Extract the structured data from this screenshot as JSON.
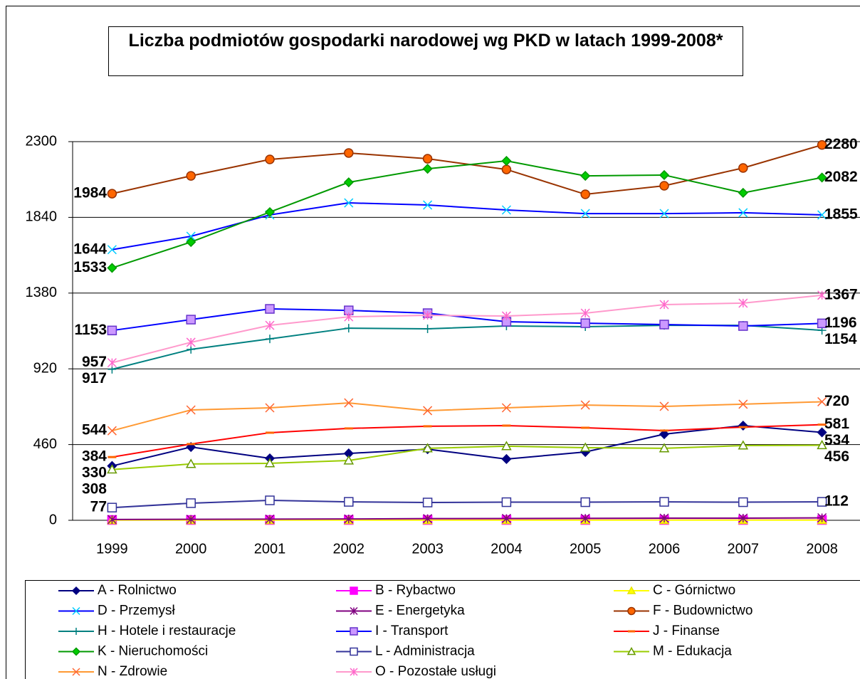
{
  "chart_data": {
    "type": "line",
    "title": "Liczba podmiotów gospodarki narodowej wg PKD w latach 1999-2008*",
    "categories": [
      "1999",
      "2000",
      "2001",
      "2002",
      "2003",
      "2004",
      "2005",
      "2006",
      "2007",
      "2008"
    ],
    "ylim": [
      0,
      2300
    ],
    "yticks": [
      0,
      460,
      920,
      1380,
      1840,
      2300
    ],
    "grid": true,
    "labeled_points": [
      0,
      9
    ],
    "series": [
      {
        "name": "A - Rolnictwo",
        "color": "#000080",
        "marker": "diamond",
        "marker_color": "#000080",
        "marker_fill": "#000080",
        "labeled": true,
        "values": [
          330,
          445,
          376,
          406,
          432,
          372,
          415,
          523,
          575,
          534
        ]
      },
      {
        "name": "B - Rybactwo",
        "color": "#ff00ff",
        "marker": "square",
        "marker_color": "#ff00ff",
        "marker_fill": "#ff00ff",
        "labeled": false,
        "values": [
          2,
          2,
          2,
          2,
          2,
          2,
          2,
          2,
          2,
          2
        ]
      },
      {
        "name": "C - Górnictwo",
        "color": "#ffff00",
        "marker": "triangle",
        "marker_color": "#e6e600",
        "marker_fill": "#ffff00",
        "labeled": false,
        "values": [
          1,
          1,
          1,
          1,
          1,
          1,
          1,
          1,
          1,
          1
        ]
      },
      {
        "name": "D - Przemysł",
        "color": "#0000ff",
        "marker": "x",
        "marker_color": "#00ccff",
        "marker_fill": "none",
        "labeled": true,
        "values": [
          1644,
          1725,
          1855,
          1928,
          1915,
          1885,
          1863,
          1863,
          1868,
          1855
        ]
      },
      {
        "name": "E - Energetyka",
        "color": "#800080",
        "marker": "star",
        "marker_color": "#800080",
        "marker_fill": "none",
        "labeled": false,
        "values": [
          5,
          6,
          7,
          8,
          10,
          11,
          12,
          13,
          13,
          15
        ]
      },
      {
        "name": "F - Budownictwo",
        "color": "#993300",
        "marker": "circle",
        "marker_color": "#993300",
        "marker_fill": "#ff6600",
        "labeled": true,
        "values": [
          1984,
          2092,
          2192,
          2231,
          2196,
          2131,
          1980,
          2032,
          2140,
          2280
        ]
      },
      {
        "name": "H - Hotele i restauracje",
        "color": "#008080",
        "marker": "plus",
        "marker_color": "#008080",
        "marker_fill": "none",
        "labeled": true,
        "values": [
          917,
          1038,
          1102,
          1167,
          1163,
          1180,
          1176,
          1184,
          1184,
          1154
        ]
      },
      {
        "name": "I - Transport",
        "color": "#0000ff",
        "marker": "square",
        "marker_color": "#6633cc",
        "marker_fill": "#cc99ff",
        "labeled": true,
        "values": [
          1153,
          1219,
          1284,
          1275,
          1258,
          1206,
          1197,
          1189,
          1180,
          1196
        ]
      },
      {
        "name": "J - Finanse",
        "color": "#ff0000",
        "marker": "dash",
        "marker_color": "#ff6600",
        "marker_fill": "none",
        "labeled": true,
        "values": [
          384,
          463,
          532,
          558,
          571,
          575,
          562,
          545,
          566,
          581
        ]
      },
      {
        "name": "K - Nieruchomości",
        "color": "#009900",
        "marker": "diamond",
        "marker_color": "#009900",
        "marker_fill": "#00cc00",
        "labeled": true,
        "values": [
          1533,
          1690,
          1872,
          2053,
          2135,
          2183,
          2092,
          2097,
          1989,
          2082
        ]
      },
      {
        "name": "L - Administracja",
        "color": "#333399",
        "marker": "square",
        "marker_color": "#333399",
        "marker_fill": "#ffffff",
        "labeled": true,
        "values": [
          77,
          104,
          121,
          112,
          108,
          110,
          110,
          112,
          110,
          112
        ]
      },
      {
        "name": "M - Edukacja",
        "color": "#99cc00",
        "marker": "triangle",
        "marker_color": "#669900",
        "marker_fill": "#ffffff",
        "labeled": true,
        "values": [
          308,
          342,
          346,
          363,
          437,
          450,
          441,
          437,
          454,
          456
        ]
      },
      {
        "name": "N - Zdrowie",
        "color": "#ff9933",
        "marker": "x",
        "marker_color": "#ff6633",
        "marker_fill": "none",
        "labeled": true,
        "values": [
          544,
          670,
          683,
          713,
          666,
          683,
          700,
          692,
          705,
          720
        ]
      },
      {
        "name": "O - Pozostałe usługi",
        "color": "#ff99cc",
        "marker": "star",
        "marker_color": "#ff66cc",
        "marker_fill": "none",
        "labeled": true,
        "values": [
          957,
          1081,
          1184,
          1236,
          1245,
          1241,
          1258,
          1310,
          1319,
          1367
        ]
      }
    ]
  }
}
